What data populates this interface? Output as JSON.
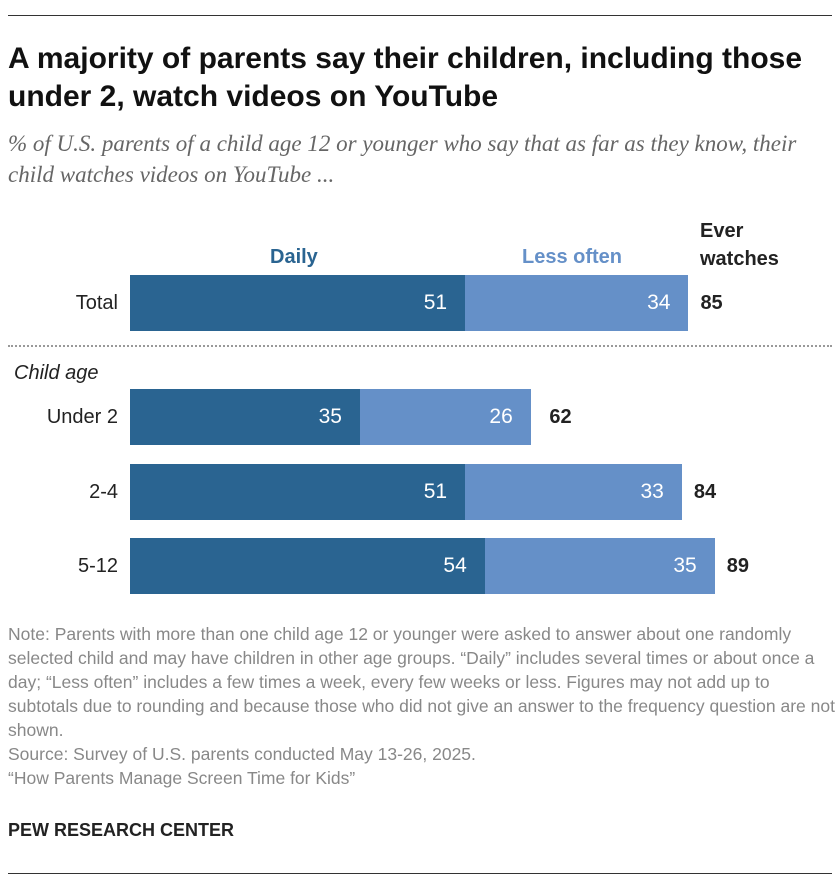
{
  "title": "A majority of parents say their children, including those under 2, watch videos on YouTube",
  "subtitle": "% of U.S. parents of a child age 12 or younger who say that as far as they know, their child watches videos on YouTube ...",
  "chart_data": {
    "type": "bar",
    "stacked": true,
    "orientation": "horizontal",
    "categories": [
      "Total",
      "Under 2",
      "2-4",
      "5-12"
    ],
    "group_label": "Child age",
    "series": [
      {
        "name": "Daily",
        "values": [
          51,
          35,
          51,
          54
        ],
        "color": "#2a6491"
      },
      {
        "name": "Less often",
        "values": [
          34,
          26,
          33,
          35
        ],
        "color": "#6590c8"
      }
    ],
    "totals_label": "Ever watches",
    "totals": [
      85,
      62,
      84,
      89
    ]
  },
  "notes": [
    "Note: Parents with more than one child age 12 or younger were asked to answer about one randomly selected child and may have children in other age groups. “Daily” includes several times or about once a day; “Less often” includes a few times a week, every few weeks or less. Figures may not add up to subtotals due to rounding and because those who did not give an answer to the frequency question are not shown.",
    "Source: Survey of U.S. parents conducted May 13-26, 2025.",
    "“How Parents Manage Screen Time for Kids”"
  ],
  "brand": "PEW RESEARCH CENTER"
}
